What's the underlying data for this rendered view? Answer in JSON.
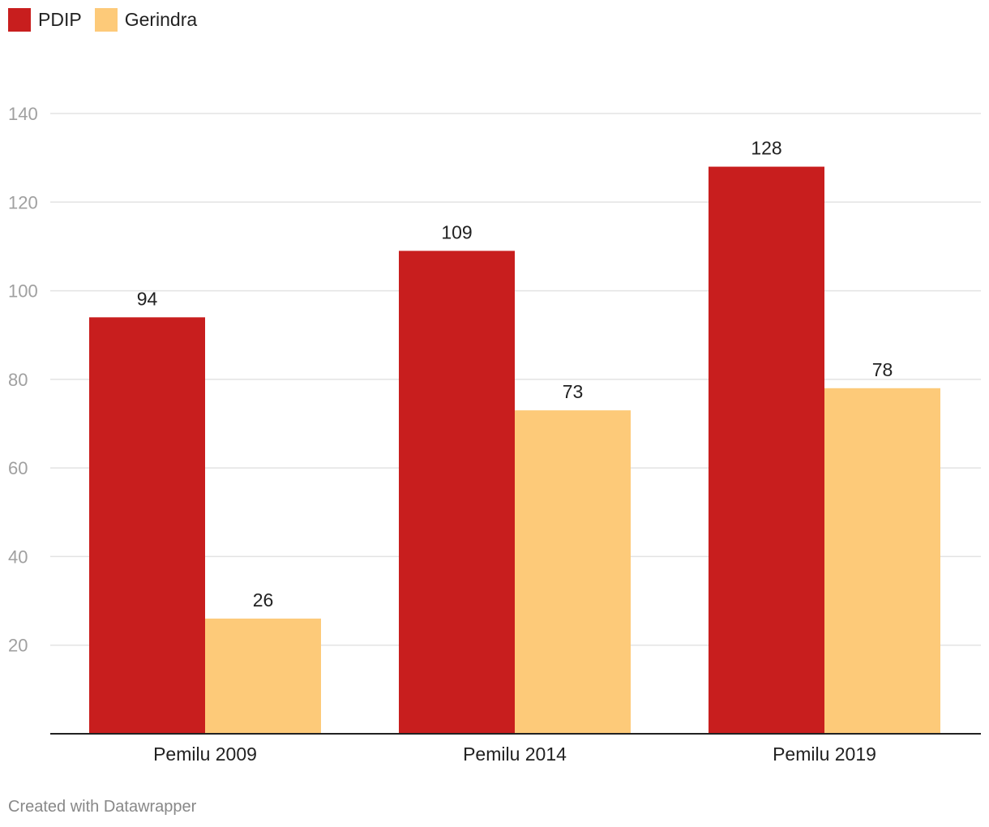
{
  "chart_data": {
    "type": "bar",
    "categories": [
      "Pemilu 2009",
      "Pemilu 2014",
      "Pemilu 2019"
    ],
    "series": [
      {
        "name": "PDIP",
        "color": "#c81e1e",
        "values": [
          94,
          109,
          128
        ]
      },
      {
        "name": "Gerindra",
        "color": "#fdca79",
        "values": [
          26,
          73,
          78
        ]
      }
    ],
    "ylim": [
      0,
      140
    ],
    "yticks": [
      20,
      40,
      60,
      80,
      100,
      120,
      140
    ],
    "grid": true,
    "legend": "top-left",
    "title": "",
    "xlabel": "",
    "ylabel": ""
  },
  "footer": {
    "credit": "Created with Datawrapper"
  }
}
